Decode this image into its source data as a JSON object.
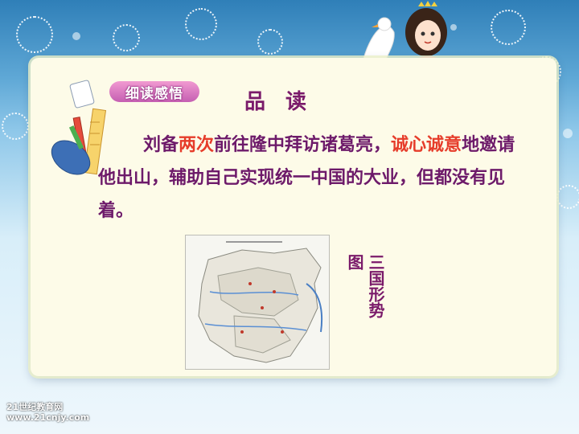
{
  "header": {
    "badge_label": "细读感悟",
    "title": "品  读"
  },
  "body": {
    "segments": [
      {
        "text": "刘备",
        "highlight": false
      },
      {
        "text": "两次",
        "highlight": true
      },
      {
        "text": "前往隆中拜访诸葛亮，",
        "highlight": false
      },
      {
        "text": "诚心诚意",
        "highlight": true
      },
      {
        "text": "地邀请他出山，辅助自己实现统一中国的大业，但都没有见着。",
        "highlight": false
      }
    ]
  },
  "map": {
    "caption": "三国形势图"
  },
  "footer": {
    "logo_line1": "21世纪教育网",
    "logo_line2": "www.21cnjy.com"
  },
  "colors": {
    "text": "#6d1a6a",
    "highlight": "#e63c2a",
    "card": "#fdfbe8"
  }
}
